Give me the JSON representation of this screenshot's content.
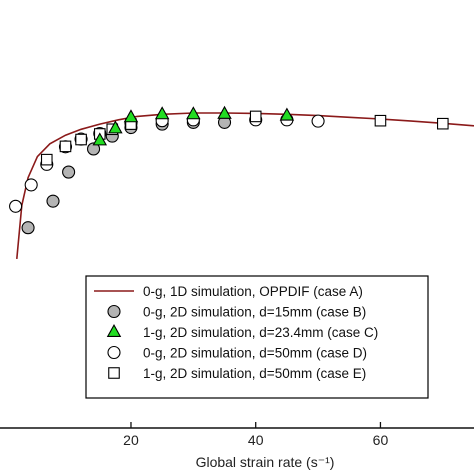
{
  "chart_data": {
    "type": "scatter",
    "title": "",
    "xlabel": "Global strain rate (s⁻¹)",
    "ylabel": "",
    "xlim": [
      -1,
      75
    ],
    "ylim": [
      0,
      1
    ],
    "x_ticks": [
      20,
      40,
      60
    ],
    "grid": false,
    "legend_position": "bottom-right",
    "colors": {
      "line": "#8b1a1a",
      "gray_fill": "#b4b4b4",
      "green_fill": "#22dd22",
      "axis": "#111111"
    },
    "series": [
      {
        "name": "0-g, 1D simulation, OPPDIF (case A)",
        "kind": "line",
        "x": [
          1.7,
          2.5,
          3.5,
          5,
          7,
          9.5,
          12,
          15,
          18,
          21,
          25,
          30,
          35,
          40,
          45,
          50,
          55,
          60,
          65,
          70,
          75
        ],
        "y": [
          0.395,
          0.52,
          0.585,
          0.634,
          0.664,
          0.684,
          0.698,
          0.71,
          0.72,
          0.728,
          0.733,
          0.736,
          0.736,
          0.735,
          0.733,
          0.73,
          0.726,
          0.722,
          0.717,
          0.712,
          0.706
        ]
      },
      {
        "name": "0-g, 2D simulation, d=15mm (case B)",
        "kind": "marker",
        "marker": "circle-filled",
        "x": [
          3.5,
          7.5,
          10,
          14,
          17,
          20,
          25,
          30,
          35
        ],
        "y": [
          0.468,
          0.53,
          0.598,
          0.652,
          0.682,
          0.702,
          0.71,
          0.714,
          0.714
        ]
      },
      {
        "name": "1-g, 2D simulation, d=23.4mm (case C)",
        "kind": "marker",
        "marker": "triangle-filled",
        "x": [
          15,
          17.5,
          20,
          25,
          30,
          35,
          45
        ],
        "y": [
          0.672,
          0.7,
          0.726,
          0.733,
          0.733,
          0.734,
          0.73
        ]
      },
      {
        "name": "0-g, 2D simulation, d=50mm (case D)",
        "kind": "marker",
        "marker": "circle-open",
        "x": [
          1.5,
          4,
          6.5,
          9.5,
          12,
          15,
          20,
          25,
          30,
          40,
          45,
          50
        ],
        "y": [
          0.518,
          0.568,
          0.616,
          0.657,
          0.675,
          0.688,
          0.712,
          0.718,
          0.72,
          0.72,
          0.72,
          0.717
        ]
      },
      {
        "name": "1-g, 2D simulation, d=50mm (case E)",
        "kind": "marker",
        "marker": "square-open",
        "x": [
          6.5,
          9.5,
          12,
          15,
          17,
          20,
          40,
          60,
          70
        ],
        "y": [
          0.627,
          0.658,
          0.674,
          0.687,
          0.698,
          0.71,
          0.728,
          0.718,
          0.711
        ]
      }
    ]
  }
}
